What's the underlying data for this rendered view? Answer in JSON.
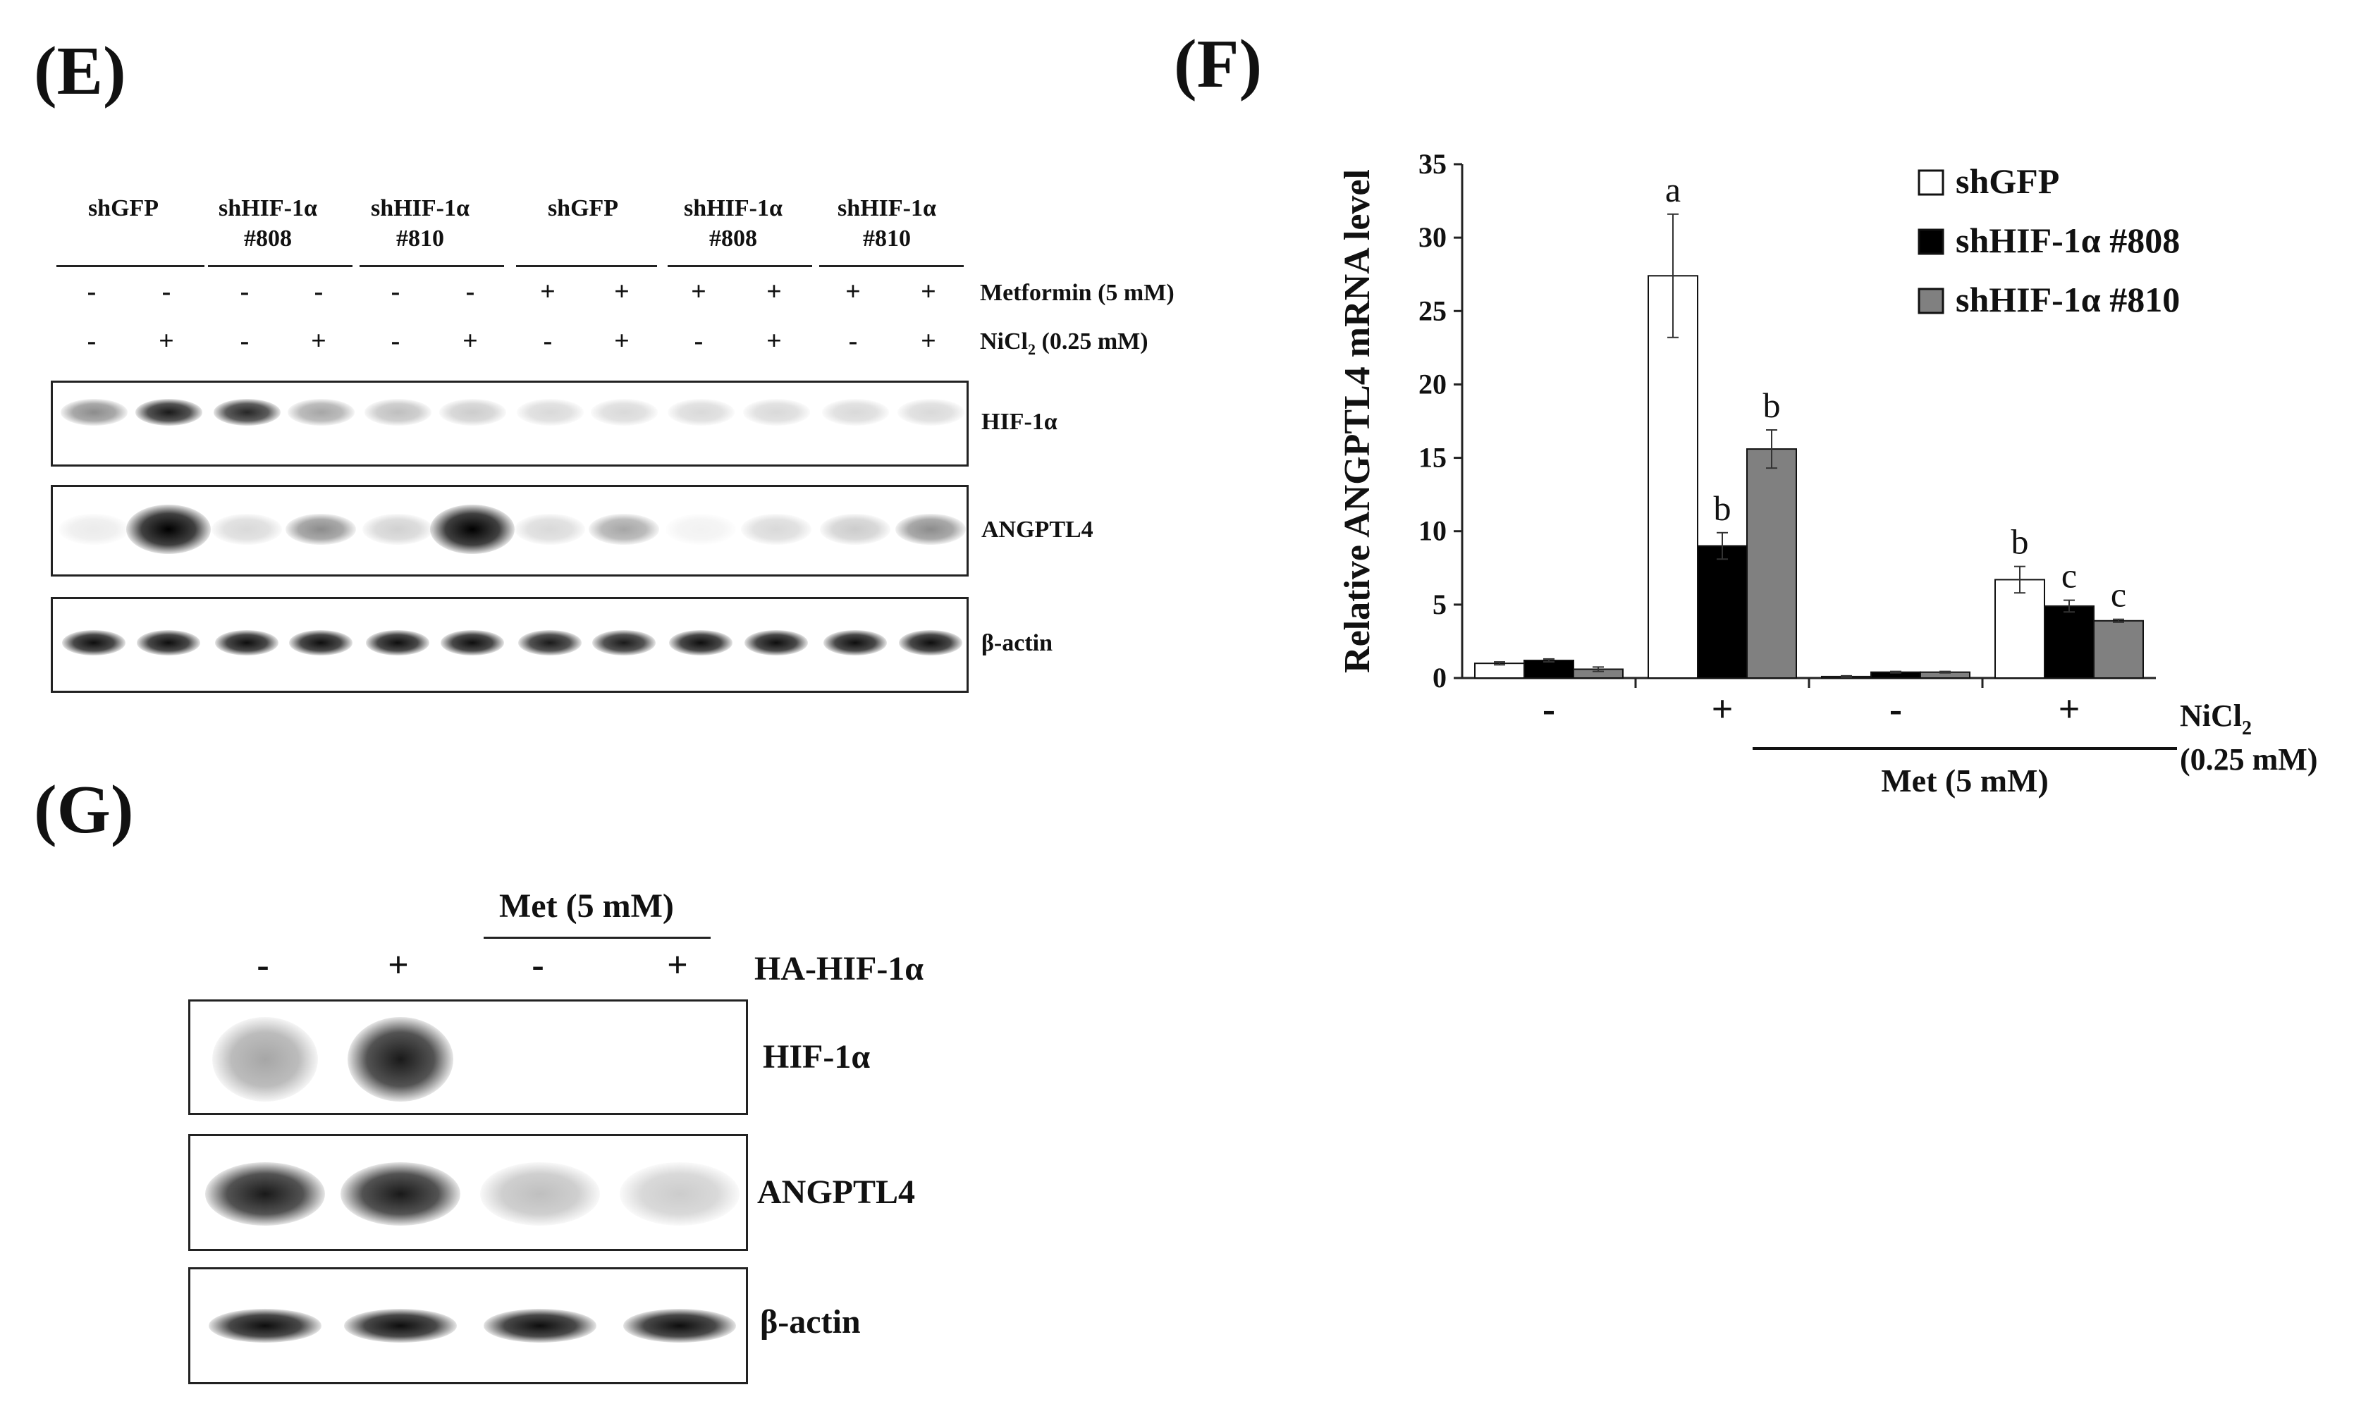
{
  "panels": {
    "E": "(E)",
    "F": "(F)",
    "G": "(G)"
  },
  "panelE": {
    "groups": [
      {
        "l1": "shGFP",
        "l2": ""
      },
      {
        "l1": "shHIF-1α",
        "l2": "#808"
      },
      {
        "l1": "shHIF-1α",
        "l2": "#810"
      },
      {
        "l1": "shGFP",
        "l2": ""
      },
      {
        "l1": "shHIF-1α",
        "l2": "#808"
      },
      {
        "l1": "shHIF-1α",
        "l2": "#810"
      }
    ],
    "metformin_label": "Metformin (5 mM)",
    "nicl_label": "NiCl",
    "nicl_sub": "2",
    "nicl_rest": " (0.25 mM)",
    "metformin_signs": [
      "-",
      "-",
      "-",
      "-",
      "-",
      "-",
      "+",
      "+",
      "+",
      "+",
      "+",
      "+"
    ],
    "nicl_signs": [
      "-",
      "+",
      "-",
      "+",
      "-",
      "+",
      "-",
      "+",
      "-",
      "+",
      "-",
      "+"
    ],
    "blot_labels": [
      "HIF-1α",
      "ANGPTL4",
      "β-actin"
    ]
  },
  "panelG": {
    "met_label": "Met (5 mM)",
    "ha_label": "HA-HIF-1α",
    "ha_signs": [
      "-",
      "+",
      "-",
      "+"
    ],
    "blot_labels": [
      "HIF-1α",
      "ANGPTL4",
      "β-actin"
    ]
  },
  "chart_data": {
    "type": "bar",
    "title": "",
    "ylabel": "Relative ANGPTL4 mRNA level",
    "xlabel": "NiCl2 (0.25 mM)",
    "xlabel_main": "NiCl",
    "xlabel_sub": "2",
    "xlabel_line2": "(0.25 mM)",
    "group_note": "Met (5 mM)",
    "ylim": [
      0,
      35
    ],
    "yticks": [
      0,
      5,
      10,
      15,
      20,
      25,
      30,
      35
    ],
    "categories": [
      "-",
      "+",
      "-",
      "+"
    ],
    "legend_position": "top-right",
    "series": [
      {
        "name": "shGFP",
        "color": "#ffffff",
        "values": [
          1.0,
          27.4,
          0.1,
          6.7
        ],
        "errors": [
          0.1,
          4.2,
          0.05,
          0.9
        ],
        "labels": [
          "",
          "a",
          "",
          "b"
        ]
      },
      {
        "name": "shHIF-1α #808",
        "color": "#000000",
        "values": [
          1.2,
          9.0,
          0.4,
          4.9
        ],
        "errors": [
          0.1,
          0.9,
          0.05,
          0.4
        ],
        "labels": [
          "",
          "b",
          "",
          "c"
        ]
      },
      {
        "name": "shHIF-1α #810",
        "color": "#808080",
        "values": [
          0.6,
          15.6,
          0.4,
          3.9
        ],
        "errors": [
          0.15,
          1.3,
          0.05,
          0.1
        ],
        "labels": [
          "",
          "b",
          "",
          "c"
        ]
      }
    ]
  }
}
